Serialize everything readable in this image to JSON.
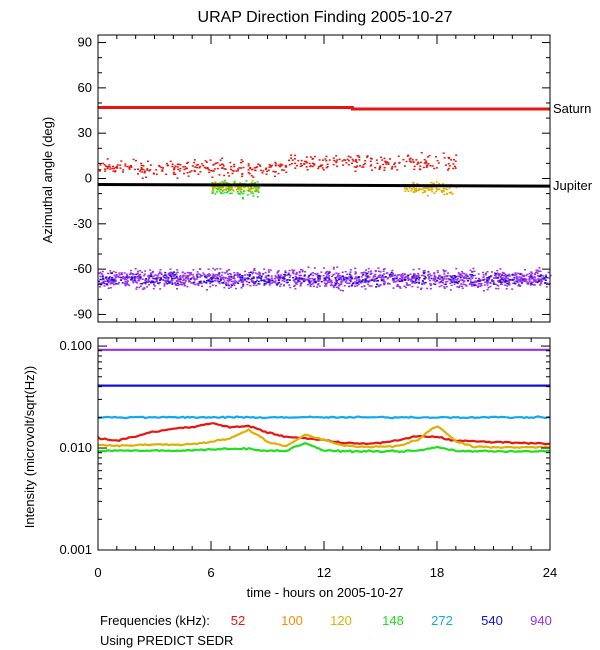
{
  "title": "URAP Direction Finding  2005-10-27",
  "footer": {
    "freq_label": "Frequencies (kHz):",
    "frequencies": [
      {
        "label": "52",
        "color": "#e8140e"
      },
      {
        "label": "100",
        "color": "#ff8c00"
      },
      {
        "label": "120",
        "color": "#e0b000"
      },
      {
        "label": "148",
        "color": "#1ee01e"
      },
      {
        "label": "272",
        "color": "#10a8f0"
      },
      {
        "label": "540",
        "color": "#1010dc"
      },
      {
        "label": "940",
        "color": "#9a30e8"
      }
    ],
    "source": "Using PREDICT SEDR"
  },
  "chart_data": [
    {
      "type": "scatter",
      "ylabel": "Azimuthal angle (deg)",
      "xlim": [
        0,
        24
      ],
      "ylim": [
        -95,
        95
      ],
      "yticks": [
        90,
        60,
        30,
        0,
        -30,
        -60,
        -90
      ],
      "x_ticks": [
        0,
        6,
        12,
        18,
        24
      ],
      "lines": [
        {
          "name": "Saturn",
          "color": "#e8140e",
          "x": [
            0,
            13.5,
            13.5,
            24
          ],
          "y": [
            47,
            47,
            46,
            46
          ]
        },
        {
          "name": "Jupiter",
          "color": "#000000",
          "x": [
            0,
            24
          ],
          "y": [
            -4,
            -5
          ]
        }
      ],
      "clusters": [
        {
          "color": "#9a30e8",
          "x_range": [
            0,
            24
          ],
          "y_center": -66,
          "y_spread": 9,
          "count": 1500
        },
        {
          "color": "#1010dc",
          "x_range": [
            0,
            24
          ],
          "y_center": -66,
          "y_spread": 6,
          "count": 300
        },
        {
          "color": "#e8140e",
          "x_range": [
            0,
            19
          ],
          "y_center": 7,
          "y_spread": 8,
          "count": 420
        },
        {
          "color": "#1ee01e",
          "x_range": [
            6,
            8.5
          ],
          "y_center": -6,
          "y_spread": 8,
          "count": 130
        },
        {
          "color": "#e0b000",
          "x_range": [
            6,
            8.5
          ],
          "y_center": -5,
          "y_spread": 5,
          "count": 90
        },
        {
          "color": "#e0b000",
          "x_range": [
            16.2,
            19
          ],
          "y_center": -6,
          "y_spread": 6,
          "count": 110
        }
      ]
    },
    {
      "type": "line",
      "ylabel": "Intensity (microvolt/sqrt(Hz))",
      "xlabel": "time - hours on 2005-10-27",
      "xlim": [
        0,
        24
      ],
      "ylim": [
        0.001,
        0.12
      ],
      "log_scale": true,
      "ytick_labels": [
        {
          "value": 0.1,
          "label": "0.100"
        },
        {
          "value": 0.01,
          "label": "0.010"
        },
        {
          "value": 0.001,
          "label": "0.001"
        }
      ],
      "xticks": [
        0,
        6,
        12,
        18,
        24
      ],
      "x": [
        0,
        1,
        2,
        3,
        4,
        5,
        6,
        7,
        8,
        9,
        10,
        11,
        12,
        13,
        14,
        15,
        16,
        17,
        18,
        19,
        20,
        21,
        22,
        23,
        24
      ],
      "series": [
        {
          "label": "940",
          "color": "#9a30e8",
          "values": [
            0.092,
            0.092,
            0.092,
            0.092,
            0.092,
            0.092,
            0.092,
            0.092,
            0.092,
            0.092,
            0.092,
            0.092,
            0.092,
            0.092,
            0.092,
            0.092,
            0.092,
            0.092,
            0.092,
            0.092,
            0.092,
            0.092,
            0.092,
            0.092,
            0.092
          ]
        },
        {
          "label": "540",
          "color": "#1010dc",
          "values": [
            0.041,
            0.041,
            0.041,
            0.041,
            0.041,
            0.041,
            0.041,
            0.041,
            0.041,
            0.041,
            0.041,
            0.041,
            0.041,
            0.041,
            0.041,
            0.041,
            0.041,
            0.041,
            0.041,
            0.041,
            0.041,
            0.041,
            0.041,
            0.041,
            0.041
          ]
        },
        {
          "label": "272",
          "color": "#10a8f0",
          "values": [
            0.02,
            0.02,
            0.02,
            0.02,
            0.02,
            0.02,
            0.02,
            0.02,
            0.02,
            0.02,
            0.02,
            0.02,
            0.02,
            0.02,
            0.02,
            0.02,
            0.02,
            0.02,
            0.02,
            0.02,
            0.02,
            0.02,
            0.02,
            0.02,
            0.02
          ]
        },
        {
          "label": "52",
          "color": "#e8140e",
          "values": [
            0.0125,
            0.0118,
            0.013,
            0.0145,
            0.0155,
            0.016,
            0.0175,
            0.016,
            0.0165,
            0.0142,
            0.0128,
            0.0125,
            0.012,
            0.0112,
            0.0111,
            0.0112,
            0.012,
            0.0132,
            0.0128,
            0.0118,
            0.0116,
            0.0115,
            0.0113,
            0.0112,
            0.011
          ]
        },
        {
          "label": "120",
          "color": "#e0b000",
          "values": [
            0.0108,
            0.0105,
            0.0107,
            0.0108,
            0.0108,
            0.0109,
            0.0115,
            0.0125,
            0.015,
            0.0115,
            0.0103,
            0.0135,
            0.012,
            0.0106,
            0.0103,
            0.0103,
            0.0105,
            0.012,
            0.0165,
            0.0115,
            0.0103,
            0.0102,
            0.0102,
            0.0102,
            0.0102
          ]
        },
        {
          "label": "148",
          "color": "#1ee01e",
          "values": [
            0.0093,
            0.0095,
            0.0094,
            0.0094,
            0.0094,
            0.0095,
            0.0097,
            0.0099,
            0.0098,
            0.0094,
            0.0094,
            0.0112,
            0.0094,
            0.0093,
            0.0093,
            0.0093,
            0.0093,
            0.0094,
            0.0102,
            0.0094,
            0.0093,
            0.0093,
            0.0093,
            0.0093,
            0.0093
          ]
        }
      ]
    }
  ]
}
